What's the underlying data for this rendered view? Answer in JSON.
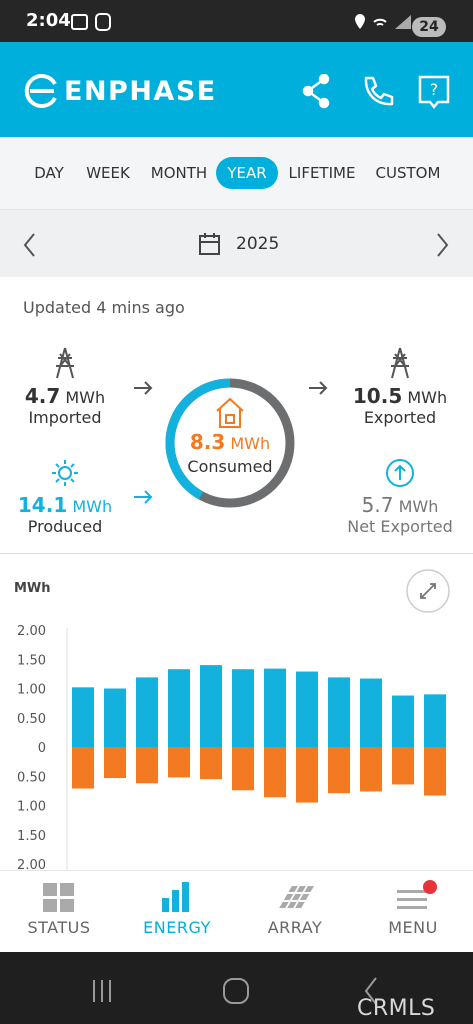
{
  "status_bar": {
    "time": "2:04",
    "battery": "24"
  },
  "header": {
    "brand": "ENPHASE"
  },
  "tabs": [
    "DAY",
    "WEEK",
    "MONTH",
    "YEAR",
    "LIFETIME",
    "CUSTOM"
  ],
  "active_tab": 3,
  "date": "2025",
  "updated": "Updated 4 mins ago",
  "stats": {
    "imported": {
      "value": 4.7,
      "unit": "MWh",
      "label": "Imported"
    },
    "exported": {
      "value": 10.5,
      "unit": "MWh",
      "label": "Exported"
    },
    "consumed": {
      "value": 8.3,
      "unit": "MWh",
      "label": "Consumed"
    },
    "produced": {
      "value": 14.1,
      "unit": "MWh",
      "label": "Produced"
    },
    "net_exported": {
      "value": 5.7,
      "unit": "MWh",
      "label": "Net Exported"
    }
  },
  "chart_data": {
    "type": "bar",
    "y_label": "MWh",
    "series": [
      {
        "color": "#13b2de",
        "values": [
          1.02,
          1.0,
          1.19,
          1.33,
          1.4,
          1.33,
          1.34,
          1.29,
          1.19,
          1.17,
          0.88,
          0.9
        ]
      },
      {
        "color": "#f37a20",
        "values": [
          -0.71,
          -0.53,
          -0.62,
          -0.52,
          -0.55,
          -0.74,
          -0.86,
          -0.95,
          -0.79,
          -0.76,
          -0.64,
          -0.83
        ]
      }
    ],
    "ylim": [
      -2,
      2
    ],
    "yticks": [
      {
        "value": 2,
        "label": "2.00"
      },
      {
        "value": 1.5,
        "label": "1.50"
      },
      {
        "value": 1,
        "label": "1.00"
      },
      {
        "value": 0.5,
        "label": "0.50"
      },
      0,
      {
        "value": -0.5,
        "label": "0.50"
      },
      {
        "value": -1,
        "label": "1.00"
      },
      {
        "value": -1.5,
        "label": "1.50"
      },
      {
        "value": -2,
        "label": "2.00"
      }
    ],
    "grid": false
  },
  "nav": [
    "STATUS",
    "ENERGY",
    "ARRAY",
    "MENU"
  ],
  "active_nav": 1,
  "watermark": "CRMLS"
}
